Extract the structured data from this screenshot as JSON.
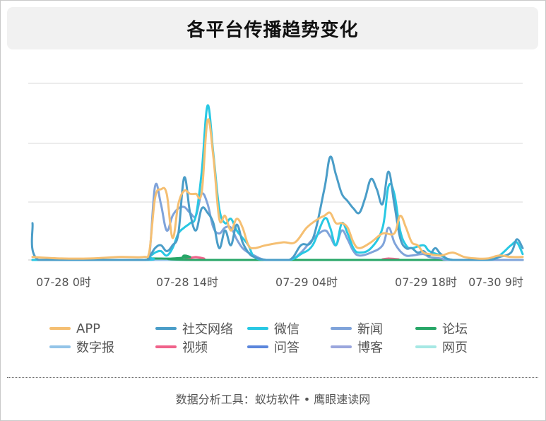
{
  "chart_data": {
    "type": "line",
    "title": "各平台传播趋势变化",
    "x_ticks": [
      "07-28 0时",
      "07-28 14时",
      "07-29 04时",
      "07-29 18时",
      "07-30 9时"
    ],
    "grid": true,
    "legend_position": "bottom",
    "y_axis_labels_visible": false,
    "series": [
      {
        "name": "APP",
        "color": "#f5bf72",
        "points": [
          [
            0,
            2
          ],
          [
            5,
            1
          ],
          [
            10,
            1
          ],
          [
            15,
            2
          ],
          [
            19,
            2
          ],
          [
            20,
            5
          ],
          [
            21,
            42
          ],
          [
            22,
            48
          ],
          [
            23,
            45
          ],
          [
            24,
            15
          ],
          [
            25,
            38
          ],
          [
            26,
            47
          ],
          [
            27,
            45
          ],
          [
            28,
            45
          ],
          [
            29,
            46
          ],
          [
            30,
            95
          ],
          [
            31,
            70
          ],
          [
            32,
            28
          ],
          [
            33,
            30
          ],
          [
            34,
            20
          ],
          [
            35,
            28
          ],
          [
            36,
            22
          ],
          [
            37,
            10
          ],
          [
            38,
            8
          ],
          [
            40,
            10
          ],
          [
            43,
            12
          ],
          [
            45,
            12
          ],
          [
            47,
            22
          ],
          [
            49,
            28
          ],
          [
            50,
            30
          ],
          [
            51,
            32
          ],
          [
            52,
            25
          ],
          [
            53,
            25
          ],
          [
            54,
            22
          ],
          [
            55,
            12
          ],
          [
            56,
            8
          ],
          [
            58,
            12
          ],
          [
            60,
            18
          ],
          [
            62,
            18
          ],
          [
            63,
            30
          ],
          [
            64,
            22
          ],
          [
            65,
            12
          ],
          [
            66,
            10
          ],
          [
            67,
            5
          ],
          [
            68,
            4
          ],
          [
            70,
            3
          ],
          [
            72,
            5
          ],
          [
            74,
            2
          ],
          [
            76,
            1
          ],
          [
            78,
            1
          ],
          [
            80,
            3
          ],
          [
            82,
            2
          ],
          [
            84,
            2
          ]
        ]
      },
      {
        "name": "社交网络",
        "color": "#4a9dc8",
        "points": [
          [
            0,
            25
          ],
          [
            1,
            0
          ],
          [
            10,
            0
          ],
          [
            19,
            0
          ],
          [
            20,
            2
          ],
          [
            21,
            8
          ],
          [
            22,
            10
          ],
          [
            23,
            6
          ],
          [
            24,
            10
          ],
          [
            25,
            18
          ],
          [
            26,
            56
          ],
          [
            27,
            32
          ],
          [
            28,
            20
          ],
          [
            29,
            35
          ],
          [
            30,
            32
          ],
          [
            31,
            25
          ],
          [
            32,
            8
          ],
          [
            33,
            20
          ],
          [
            34,
            10
          ],
          [
            35,
            24
          ],
          [
            36,
            12
          ],
          [
            37,
            5
          ],
          [
            38,
            2
          ],
          [
            40,
            0
          ],
          [
            44,
            0
          ],
          [
            46,
            10
          ],
          [
            48,
            14
          ],
          [
            50,
            48
          ],
          [
            51,
            70
          ],
          [
            52,
            58
          ],
          [
            53,
            45
          ],
          [
            54,
            40
          ],
          [
            55,
            35
          ],
          [
            56,
            32
          ],
          [
            57,
            42
          ],
          [
            58,
            55
          ],
          [
            59,
            48
          ],
          [
            60,
            38
          ],
          [
            61,
            60
          ],
          [
            62,
            38
          ],
          [
            63,
            15
          ],
          [
            64,
            8
          ],
          [
            65,
            8
          ],
          [
            66,
            5
          ],
          [
            67,
            6
          ],
          [
            68,
            3
          ],
          [
            69,
            8
          ],
          [
            70,
            4
          ],
          [
            72,
            0
          ],
          [
            78,
            0
          ],
          [
            80,
            2
          ],
          [
            82,
            5
          ],
          [
            83,
            14
          ],
          [
            84,
            8
          ]
        ]
      },
      {
        "name": "微信",
        "color": "#28c8e3",
        "points": [
          [
            0,
            0
          ],
          [
            19,
            0
          ],
          [
            20,
            2
          ],
          [
            21,
            5
          ],
          [
            22,
            6
          ],
          [
            23,
            3
          ],
          [
            24,
            8
          ],
          [
            25,
            18
          ],
          [
            26,
            22
          ],
          [
            27,
            25
          ],
          [
            28,
            30
          ],
          [
            29,
            60
          ],
          [
            30,
            105
          ],
          [
            31,
            72
          ],
          [
            32,
            35
          ],
          [
            33,
            25
          ],
          [
            34,
            28
          ],
          [
            35,
            20
          ],
          [
            36,
            15
          ],
          [
            37,
            10
          ],
          [
            38,
            2
          ],
          [
            40,
            0
          ],
          [
            44,
            0
          ],
          [
            46,
            4
          ],
          [
            48,
            10
          ],
          [
            50,
            28
          ],
          [
            51,
            22
          ],
          [
            52,
            10
          ],
          [
            53,
            25
          ],
          [
            54,
            18
          ],
          [
            55,
            8
          ],
          [
            56,
            5
          ],
          [
            58,
            8
          ],
          [
            60,
            22
          ],
          [
            61,
            50
          ],
          [
            62,
            45
          ],
          [
            63,
            20
          ],
          [
            64,
            10
          ],
          [
            65,
            8
          ],
          [
            67,
            10
          ],
          [
            68,
            6
          ],
          [
            70,
            3
          ],
          [
            72,
            0
          ],
          [
            78,
            0
          ],
          [
            80,
            3
          ],
          [
            82,
            10
          ],
          [
            83,
            12
          ],
          [
            84,
            4
          ]
        ]
      },
      {
        "name": "新闻",
        "color": "#7fa3da",
        "points": [
          [
            0,
            0
          ],
          [
            19,
            0
          ],
          [
            20,
            2
          ],
          [
            21,
            50
          ],
          [
            22,
            38
          ],
          [
            23,
            20
          ],
          [
            24,
            30
          ],
          [
            25,
            35
          ],
          [
            26,
            36
          ],
          [
            27,
            32
          ],
          [
            28,
            30
          ],
          [
            29,
            45
          ],
          [
            30,
            38
          ],
          [
            31,
            22
          ],
          [
            32,
            18
          ],
          [
            33,
            22
          ],
          [
            34,
            22
          ],
          [
            35,
            14
          ],
          [
            36,
            8
          ],
          [
            37,
            5
          ],
          [
            38,
            3
          ],
          [
            40,
            0
          ],
          [
            44,
            0
          ],
          [
            46,
            5
          ],
          [
            48,
            14
          ],
          [
            50,
            20
          ],
          [
            51,
            16
          ],
          [
            52,
            10
          ],
          [
            53,
            20
          ],
          [
            54,
            14
          ],
          [
            55,
            6
          ],
          [
            56,
            3
          ],
          [
            58,
            5
          ],
          [
            60,
            10
          ],
          [
            61,
            22
          ],
          [
            62,
            12
          ],
          [
            63,
            6
          ],
          [
            64,
            3
          ],
          [
            65,
            3
          ],
          [
            67,
            4
          ],
          [
            68,
            2
          ],
          [
            70,
            1
          ],
          [
            72,
            0
          ],
          [
            84,
            0
          ]
        ]
      },
      {
        "name": "论坛",
        "color": "#27a667",
        "points": [
          [
            0,
            0
          ],
          [
            19,
            0
          ],
          [
            20,
            1
          ],
          [
            25,
            1
          ],
          [
            26,
            3
          ],
          [
            27,
            2
          ],
          [
            28,
            0
          ],
          [
            84,
            0
          ]
        ]
      },
      {
        "name": "数字报",
        "color": "#93c4e8",
        "points": [
          [
            0,
            0
          ],
          [
            84,
            0
          ]
        ]
      },
      {
        "name": "视频",
        "color": "#f0628a",
        "points": [
          [
            0,
            0
          ],
          [
            27,
            0
          ],
          [
            28,
            2
          ],
          [
            29,
            0
          ],
          [
            60,
            0
          ],
          [
            61,
            1
          ],
          [
            62,
            0
          ],
          [
            84,
            0
          ]
        ]
      },
      {
        "name": "问答",
        "color": "#5b86dc",
        "points": [
          [
            0,
            0
          ],
          [
            84,
            0
          ]
        ]
      },
      {
        "name": "博客",
        "color": "#9aa6dd",
        "points": [
          [
            0,
            0
          ],
          [
            84,
            0
          ]
        ]
      },
      {
        "name": "网页",
        "color": "#a6e8e4",
        "points": [
          [
            0,
            0
          ],
          [
            84,
            0
          ]
        ]
      }
    ]
  },
  "footer_text": "数据分析工具：蚁坊软件 • 鹰眼速读网"
}
